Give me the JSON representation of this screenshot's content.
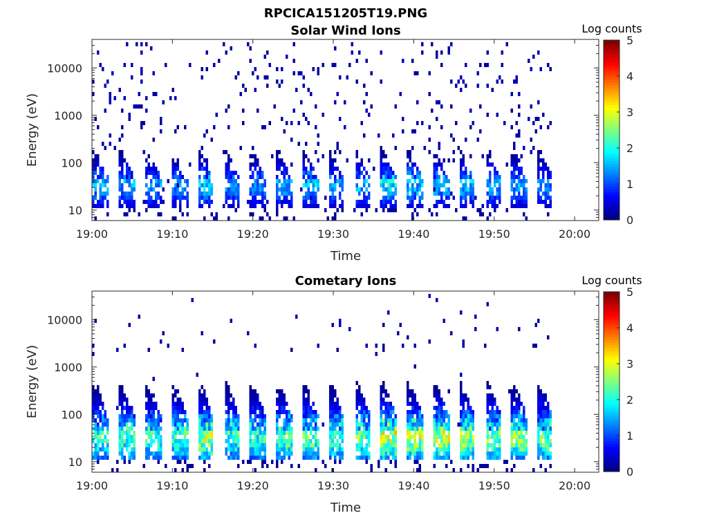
{
  "figure": {
    "title": "RPCICA151205T19.PNG"
  },
  "colors": {
    "colormap": "jet",
    "axis": "#262626",
    "background": "#ffffff"
  },
  "chart_data": [
    {
      "type": "heatmap",
      "title": "Solar Wind Ions",
      "xlabel": "Time",
      "ylabel": "Energy (eV)",
      "x_ticks": [
        "19:00",
        "19:10",
        "19:20",
        "19:30",
        "19:40",
        "19:50",
        "20:00"
      ],
      "xlim_minutes_after_1900": [
        0,
        63
      ],
      "y_scale": "log",
      "y_ticks": [
        "10",
        "100",
        "1000",
        "10000"
      ],
      "ylim": [
        6,
        40000
      ],
      "colorbar": {
        "label": "Log counts",
        "ticks": [
          "0",
          "1",
          "2",
          "3",
          "4",
          "5"
        ],
        "range": [
          0,
          5
        ]
      },
      "grid": false,
      "sweep_period_min": 3.25,
      "sweeps": [
        {
          "t_start": 0.0,
          "peak_log_counts": 1.9
        },
        {
          "t_start": 3.25,
          "peak_log_counts": 1.8
        },
        {
          "t_start": 6.5,
          "peak_log_counts": 1.7
        },
        {
          "t_start": 9.75,
          "peak_log_counts": 1.6
        },
        {
          "t_start": 13.0,
          "peak_log_counts": 2.1
        },
        {
          "t_start": 16.25,
          "peak_log_counts": 1.6
        },
        {
          "t_start": 19.5,
          "peak_log_counts": 1.6
        },
        {
          "t_start": 22.75,
          "peak_log_counts": 1.8
        },
        {
          "t_start": 26.0,
          "peak_log_counts": 1.9
        },
        {
          "t_start": 29.25,
          "peak_log_counts": 1.7
        },
        {
          "t_start": 32.5,
          "peak_log_counts": 1.9
        },
        {
          "t_start": 35.75,
          "peak_log_counts": 2.3
        },
        {
          "t_start": 39.0,
          "peak_log_counts": 2.0
        },
        {
          "t_start": 42.25,
          "peak_log_counts": 1.9
        },
        {
          "t_start": 45.5,
          "peak_log_counts": 2.0
        },
        {
          "t_start": 48.75,
          "peak_log_counts": 1.8
        },
        {
          "t_start": 52.0,
          "peak_log_counts": 1.7
        },
        {
          "t_start": 55.25,
          "peak_log_counts": 1.6
        }
      ],
      "data_end_min": 57.3,
      "peak_energy_eV": 35
    },
    {
      "type": "heatmap",
      "title": "Cometary Ions",
      "xlabel": "Time",
      "ylabel": "Energy (eV)",
      "x_ticks": [
        "19:00",
        "19:10",
        "19:20",
        "19:30",
        "19:40",
        "19:50",
        "20:00"
      ],
      "xlim_minutes_after_1900": [
        0,
        63
      ],
      "y_scale": "log",
      "y_ticks": [
        "10",
        "100",
        "1000",
        "10000"
      ],
      "ylim": [
        6,
        40000
      ],
      "colorbar": {
        "label": "Log counts",
        "ticks": [
          "0",
          "1",
          "2",
          "3",
          "4",
          "5"
        ],
        "range": [
          0,
          5
        ]
      },
      "grid": false,
      "sweep_period_min": 3.25,
      "sweeps": [
        {
          "t_start": 0.0,
          "peak_log_counts": 2.7
        },
        {
          "t_start": 3.25,
          "peak_log_counts": 2.8
        },
        {
          "t_start": 6.5,
          "peak_log_counts": 2.6
        },
        {
          "t_start": 9.75,
          "peak_log_counts": 2.7
        },
        {
          "t_start": 13.0,
          "peak_log_counts": 3.4
        },
        {
          "t_start": 16.25,
          "peak_log_counts": 2.7
        },
        {
          "t_start": 19.5,
          "peak_log_counts": 2.6
        },
        {
          "t_start": 22.75,
          "peak_log_counts": 2.9
        },
        {
          "t_start": 26.0,
          "peak_log_counts": 3.0
        },
        {
          "t_start": 29.25,
          "peak_log_counts": 2.8
        },
        {
          "t_start": 32.5,
          "peak_log_counts": 3.0
        },
        {
          "t_start": 35.75,
          "peak_log_counts": 3.6
        },
        {
          "t_start": 39.0,
          "peak_log_counts": 3.4
        },
        {
          "t_start": 42.25,
          "peak_log_counts": 3.5
        },
        {
          "t_start": 45.5,
          "peak_log_counts": 3.3
        },
        {
          "t_start": 48.75,
          "peak_log_counts": 3.1
        },
        {
          "t_start": 52.0,
          "peak_log_counts": 3.3
        },
        {
          "t_start": 55.25,
          "peak_log_counts": 3.0
        }
      ],
      "data_end_min": 57.3,
      "peak_energy_eV": 35
    }
  ]
}
